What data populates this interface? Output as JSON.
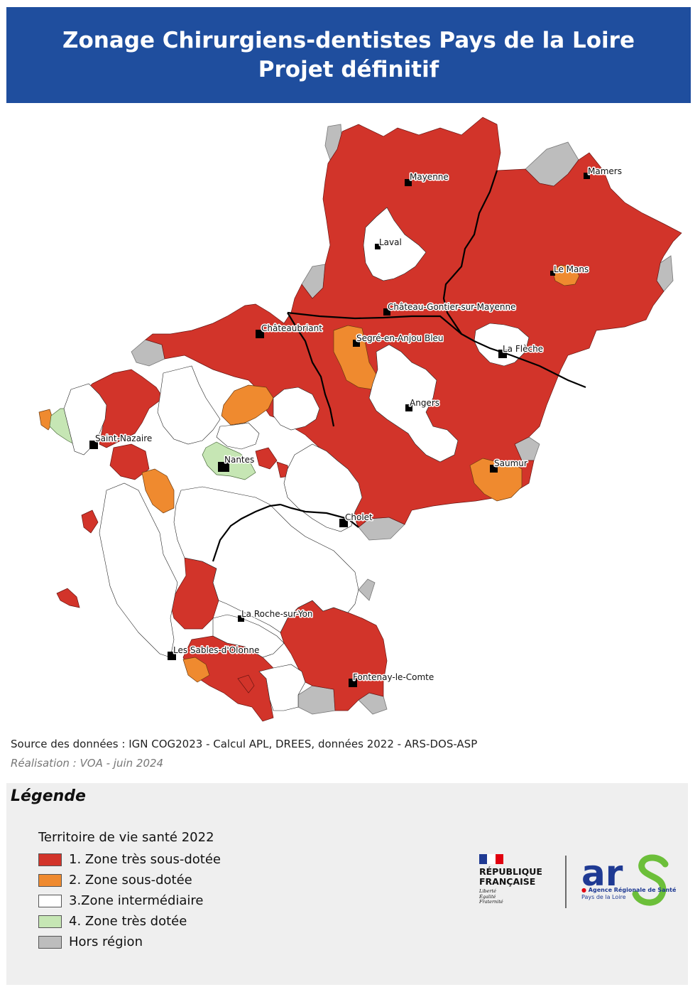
{
  "title": {
    "line1": "Zonage Chirurgiens-dentistes Pays de la Loire",
    "line2": "Projet définitif"
  },
  "colors": {
    "banner": "#1f4e9e",
    "zone1": "#d2342a",
    "zone2": "#ef8a2f",
    "zone3": "#ffffff",
    "zone4": "#c6e6b4",
    "hors_region": "#bdbdbd"
  },
  "cities": [
    {
      "name": "Mayenne"
    },
    {
      "name": "Mamers"
    },
    {
      "name": "Laval"
    },
    {
      "name": "Le Mans"
    },
    {
      "name": "Château-Gontier-sur-Mayenne"
    },
    {
      "name": "Châteaubriant"
    },
    {
      "name": "Segré-en-Anjou Bleu"
    },
    {
      "name": "La Flèche"
    },
    {
      "name": "Angers"
    },
    {
      "name": "Saint-Nazaire"
    },
    {
      "name": "Nantes"
    },
    {
      "name": "Saumur"
    },
    {
      "name": "Cholet"
    },
    {
      "name": "La Roche-sur-Yon"
    },
    {
      "name": "Les Sables-d'Olonne"
    },
    {
      "name": "Fontenay-le-Comte"
    }
  ],
  "source_text": "Source des données : IGN COG2023 - Calcul APL, DREES, données 2022 - ARS-DOS-ASP",
  "credit_text": "Réalisation : VOA - juin 2024",
  "legend": {
    "title": "Légende",
    "subtitle": "Territoire de vie santé 2022",
    "items": [
      {
        "label": "1. Zone très sous-dotée",
        "color": "#d2342a"
      },
      {
        "label": "2. Zone sous-dotée",
        "color": "#ef8a2f"
      },
      {
        "label": "3.Zone intermédiaire",
        "color": "#ffffff"
      },
      {
        "label": "4. Zone très dotée",
        "color": "#c6e6b4"
      },
      {
        "label": "Hors région",
        "color": "#bdbdbd"
      }
    ]
  },
  "logos": {
    "rf_line1": "RÉPUBLIQUE",
    "rf_line2": "FRANÇAISE",
    "rf_motto1": "Liberté",
    "rf_motto2": "Égalité",
    "rf_motto3": "Fraternité",
    "ars_text": "ars",
    "ars_line1": "Agence Régionale de Santé",
    "ars_line2": "Pays de la Loire"
  }
}
